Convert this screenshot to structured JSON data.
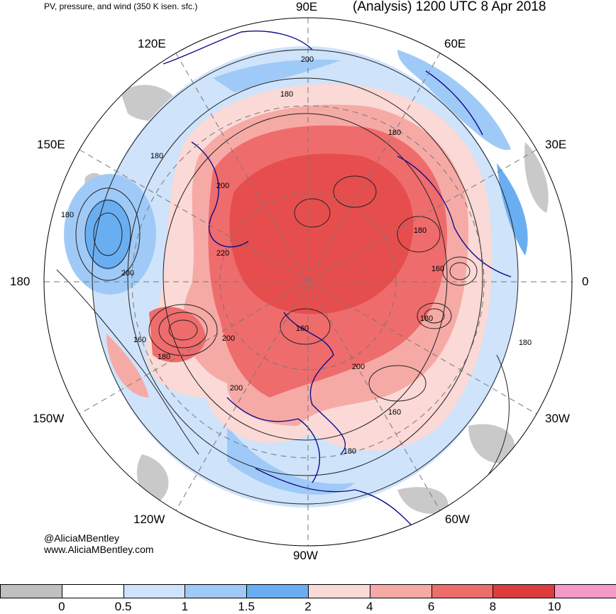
{
  "header": {
    "product": "PV, pressure, and wind (350 K isen. sfc.)",
    "valid_time": "(Analysis) 1200 UTC 8 Apr 2018"
  },
  "longitude_labels": [
    "90E",
    "60E",
    "30E",
    "0",
    "30W",
    "60W",
    "90W",
    "120W",
    "150W",
    "180",
    "150E",
    "120E"
  ],
  "pressure_contour_labels": [
    "200",
    "180",
    "180",
    "180",
    "200",
    "180",
    "200",
    "220",
    "180",
    "200",
    "160",
    "180",
    "160",
    "200",
    "200",
    "180",
    "160",
    "180",
    "180",
    "160"
  ],
  "credits": {
    "handle": "@AliciaMBentley",
    "website": "www.AliciaMBentley.com"
  },
  "colorbar": {
    "tick_labels": [
      "0",
      "0.5",
      "1",
      "1.5",
      "2",
      "4",
      "6",
      "8",
      "10"
    ],
    "colors": [
      "#c0c0c0",
      "#ffffff",
      "#cfe3fb",
      "#9fcaf8",
      "#6aaef2",
      "#fad9d6",
      "#f6aaa6",
      "#ef6c6c",
      "#e03b3b",
      "#f49ac4"
    ]
  },
  "map_colors": {
    "land_outline": "#0c0c8a",
    "contour": "#222222",
    "graticule": "#777777",
    "pv_gray": "#c0c0c0",
    "pv_light_blue": "#cfe3fb",
    "pv_mid_blue": "#9fcaf8",
    "pv_blue": "#6aaef2",
    "pv_light_red": "#fad9d6",
    "pv_mid_red": "#f6aaa6",
    "pv_red": "#ef6c6c",
    "pv_dark_red": "#e03b3b"
  }
}
